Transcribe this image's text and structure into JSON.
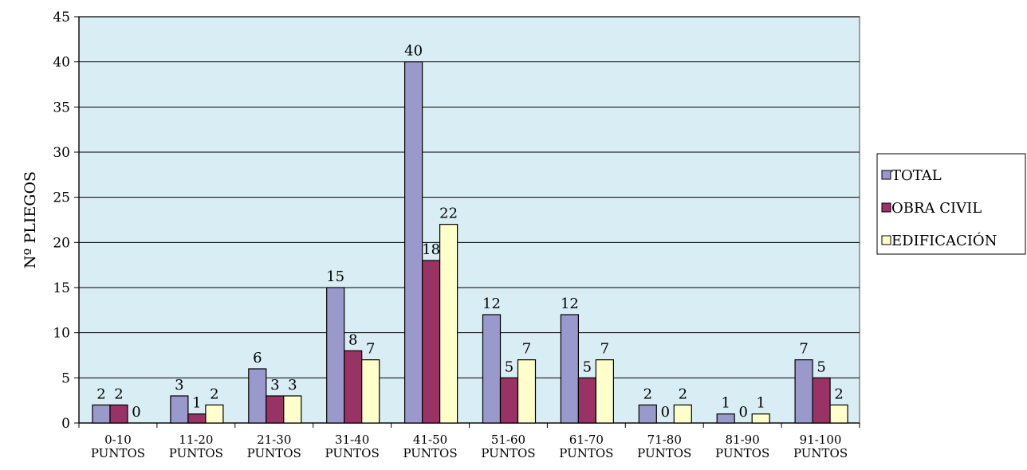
{
  "chart_data": {
    "type": "bar",
    "title": "",
    "xlabel": "",
    "ylabel": "Nº PLIEGOS",
    "ylim": [
      0,
      45
    ],
    "yticks": [
      0,
      5,
      10,
      15,
      20,
      25,
      30,
      35,
      40,
      45
    ],
    "grid": true,
    "legend_position": "right",
    "plot_background": "#d9edf5",
    "categories": [
      [
        "0-10",
        "PUNTOS"
      ],
      [
        "11-20",
        "PUNTOS"
      ],
      [
        "21-30",
        "PUNTOS"
      ],
      [
        "31-40",
        "PUNTOS"
      ],
      [
        "41-50",
        "PUNTOS"
      ],
      [
        "51-60",
        "PUNTOS"
      ],
      [
        "61-70",
        "PUNTOS"
      ],
      [
        "71-80",
        "PUNTOS"
      ],
      [
        "81-90",
        "PUNTOS"
      ],
      [
        "91-100",
        "PUNTOS"
      ]
    ],
    "series": [
      {
        "name": "TOTAL",
        "color": "#9a99cc",
        "values": [
          2,
          3,
          6,
          15,
          40,
          12,
          12,
          2,
          1,
          7
        ]
      },
      {
        "name": "OBRA CIVIL",
        "color": "#993366",
        "values": [
          2,
          1,
          3,
          8,
          18,
          5,
          5,
          0,
          0,
          5
        ]
      },
      {
        "name": "EDIFICACIÓN",
        "color": "#ffffcc",
        "values": [
          0,
          2,
          3,
          7,
          22,
          7,
          7,
          2,
          1,
          2
        ]
      }
    ]
  }
}
